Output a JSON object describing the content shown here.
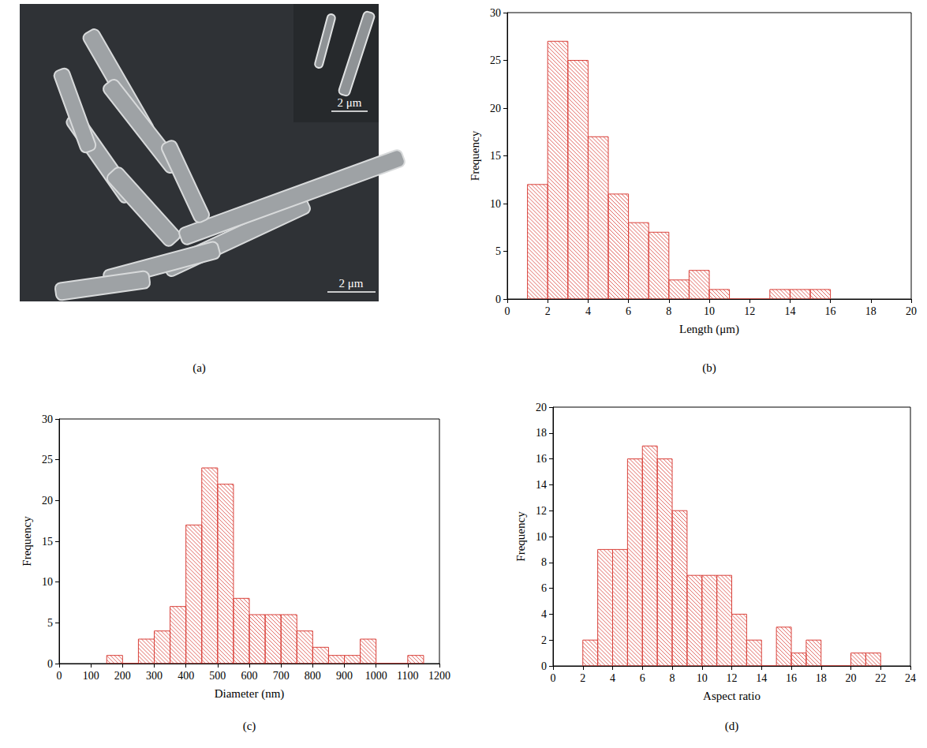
{
  "image_panel": {
    "label": "(a)",
    "scale_bars": [
      "2 μm",
      "2 μm"
    ]
  },
  "chart_data": [
    {
      "type": "histogram",
      "title": "(b)",
      "xlabel": "Length (μm)",
      "ylabel": "Frequency",
      "bins": [
        1,
        2,
        3,
        4,
        5,
        6,
        7,
        8,
        9,
        10,
        11,
        12,
        13,
        14,
        15,
        16
      ],
      "values": [
        12,
        27,
        25,
        17,
        11,
        8,
        7,
        2,
        3,
        1,
        0,
        0,
        1,
        1,
        1
      ],
      "color": "#d9413a",
      "xlim": [
        0,
        20
      ],
      "xticks": [
        0,
        2,
        4,
        6,
        8,
        10,
        12,
        14,
        16,
        18,
        20
      ],
      "ylim": [
        0,
        30
      ],
      "yticks": [
        0,
        5,
        10,
        15,
        20,
        25,
        30
      ],
      "grid": false
    },
    {
      "type": "histogram",
      "title": "(c)",
      "xlabel": "Diameter (nm)",
      "ylabel": "Frequency",
      "bins": [
        150,
        200,
        250,
        300,
        350,
        400,
        450,
        500,
        550,
        600,
        650,
        700,
        750,
        800,
        850,
        900,
        950,
        1000,
        1050,
        1100,
        1150
      ],
      "values": [
        1,
        0,
        3,
        4,
        7,
        17,
        24,
        22,
        8,
        6,
        6,
        6,
        4,
        2,
        1,
        1,
        3,
        0,
        0,
        1
      ],
      "color": "#d9413a",
      "xlim": [
        0,
        1200
      ],
      "xticks": [
        0,
        100,
        200,
        300,
        400,
        500,
        600,
        700,
        800,
        900,
        1000,
        1100,
        1200
      ],
      "ylim": [
        0,
        30
      ],
      "yticks": [
        0,
        5,
        10,
        15,
        20,
        25,
        30
      ],
      "grid": false
    },
    {
      "type": "histogram",
      "title": "(d)",
      "xlabel": "Aspect ratio",
      "ylabel": "Frequency",
      "bins": [
        2,
        3,
        4,
        5,
        6,
        7,
        8,
        9,
        10,
        11,
        12,
        13,
        14,
        15,
        16,
        17,
        18,
        19,
        20,
        21,
        22
      ],
      "values": [
        2,
        9,
        9,
        16,
        17,
        16,
        12,
        7,
        7,
        7,
        4,
        2,
        0,
        3,
        1,
        2,
        0,
        0,
        1,
        1
      ],
      "color": "#d9413a",
      "xlim": [
        0,
        24
      ],
      "xticks": [
        0,
        2,
        4,
        6,
        8,
        10,
        12,
        14,
        16,
        18,
        20,
        22,
        24
      ],
      "ylim": [
        0,
        20
      ],
      "yticks": [
        0,
        2,
        4,
        6,
        8,
        10,
        12,
        14,
        16,
        18,
        20
      ],
      "grid": false
    }
  ]
}
